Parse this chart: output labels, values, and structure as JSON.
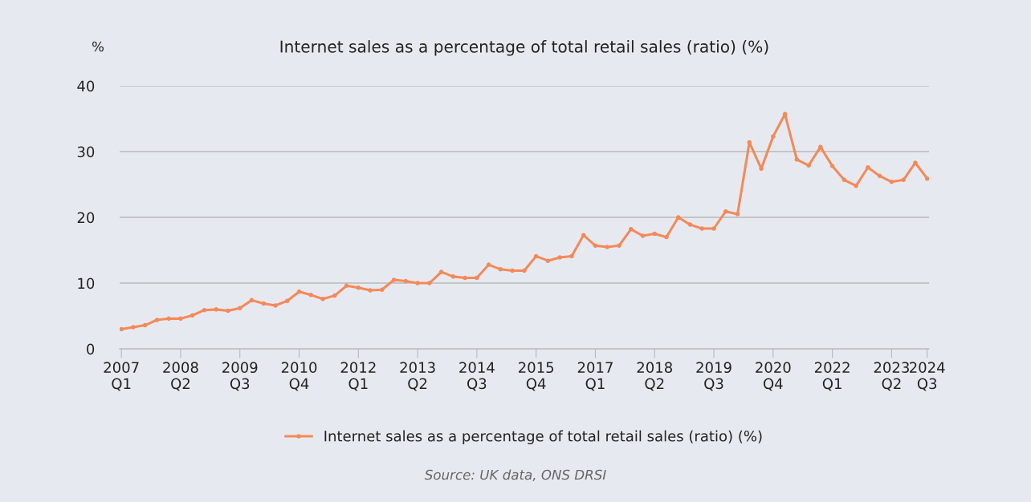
{
  "chart_data": {
    "type": "line",
    "title": "Internet sales as a percentage of total retail sales (ratio) (%)",
    "ylabel": "%",
    "categories": [
      "2007\nQ1",
      null,
      null,
      null,
      null,
      "2008\nQ2",
      null,
      null,
      null,
      null,
      "2009\nQ3",
      null,
      null,
      null,
      null,
      "2010\nQ4",
      null,
      null,
      null,
      null,
      "2012\nQ1",
      null,
      null,
      null,
      null,
      "2013\nQ2",
      null,
      null,
      null,
      null,
      "2014\nQ3",
      null,
      null,
      null,
      null,
      "2015\nQ4",
      null,
      null,
      null,
      null,
      "2017\nQ1",
      null,
      null,
      null,
      null,
      "2018\nQ2",
      null,
      null,
      null,
      null,
      "2019\nQ3",
      null,
      null,
      null,
      null,
      "2020\nQ4",
      null,
      null,
      null,
      null,
      "2022\nQ1",
      null,
      null,
      null,
      null,
      "2023\nQ2",
      null,
      null,
      "2024\nQ3"
    ],
    "series": [
      {
        "name": "Internet sales as a percentage of total retail sales (ratio) (%)",
        "color": "#f5895a",
        "values": [
          3.0,
          3.3,
          3.6,
          4.4,
          4.6,
          4.6,
          5.1,
          5.9,
          6.0,
          5.8,
          6.2,
          7.4,
          6.9,
          6.6,
          7.3,
          8.7,
          8.2,
          7.6,
          8.1,
          9.6,
          9.3,
          8.9,
          9.0,
          10.5,
          10.3,
          10.0,
          10.0,
          11.7,
          11.0,
          10.8,
          10.8,
          12.8,
          12.1,
          11.9,
          11.9,
          14.1,
          13.4,
          13.9,
          14.1,
          17.3,
          15.7,
          15.5,
          15.7,
          18.2,
          17.2,
          17.5,
          17.0,
          20.0,
          18.9,
          18.3,
          18.3,
          20.9,
          20.5,
          31.4,
          27.4,
          32.3,
          35.7,
          28.8,
          27.9,
          30.7,
          27.8,
          25.7,
          24.8,
          27.6,
          26.3,
          25.4,
          25.7,
          28.3,
          25.9
        ]
      }
    ],
    "ylim": [
      0,
      40
    ],
    "yticks": [
      0,
      10,
      20,
      30,
      40
    ],
    "grid": "y",
    "legend": "bottom",
    "marker": "circle",
    "line_style": "solid",
    "annotations": [
      "Source: UK data, ONS DRSI"
    ]
  }
}
